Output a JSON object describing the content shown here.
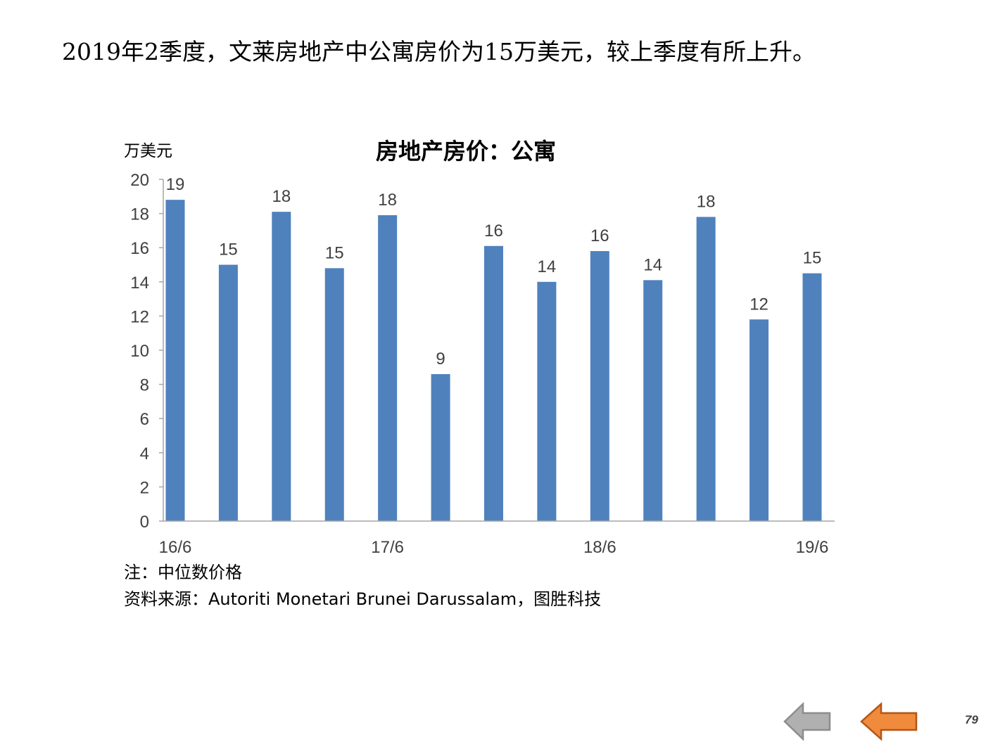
{
  "headline": "2019年2季度，文莱房地产中公寓房价为15万美元，较上季度有所上升。",
  "notes": {
    "note": "注：中位数价格",
    "source": "资料来源：Autoriti Monetari Brunei Darussalam，图胜科技"
  },
  "page_number": "79",
  "navigation": {
    "back_color": "#b0b0b0",
    "forward_color": "#f08a3c"
  },
  "chart_data": {
    "type": "bar",
    "title": "房地产房价：公寓",
    "ylabel": "万美元",
    "xlabel": "",
    "ylim": [
      0,
      20
    ],
    "yticks": [
      0,
      2,
      4,
      6,
      8,
      10,
      12,
      14,
      16,
      18,
      20
    ],
    "categories": [
      "16/6",
      "",
      "",
      "",
      "17/6",
      "",
      "",
      "",
      "18/6",
      "",
      "",
      "",
      "19/6"
    ],
    "values": [
      18.8,
      15.0,
      18.1,
      14.8,
      17.9,
      8.6,
      16.1,
      14.0,
      15.8,
      14.1,
      17.8,
      11.8,
      14.5
    ],
    "data_labels": [
      "19",
      "15",
      "18",
      "15",
      "18",
      "9",
      "16",
      "14",
      "16",
      "14",
      "18",
      "12",
      "15"
    ],
    "bar_color": "#4f81bd",
    "grid": false,
    "legend": "none"
  }
}
